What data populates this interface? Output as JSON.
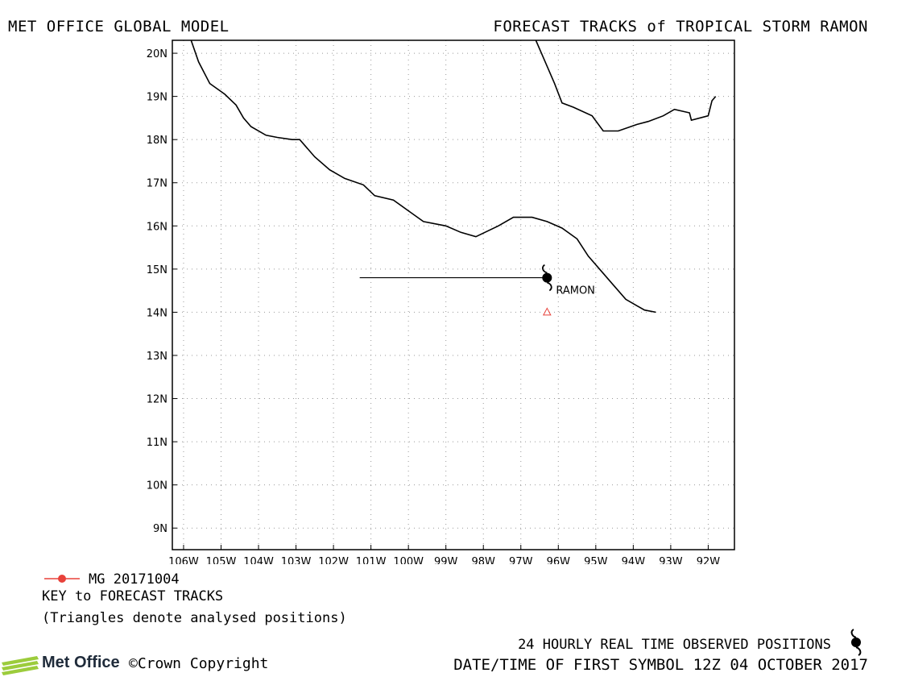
{
  "header": {
    "left": "MET OFFICE GLOBAL MODEL",
    "right": "FORECAST TRACKS of TROPICAL STORM RAMON"
  },
  "map": {
    "lat_labels": [
      "20N",
      "19N",
      "18N",
      "17N",
      "16N",
      "15N",
      "14N",
      "13N",
      "12N",
      "11N",
      "10N",
      "9N"
    ],
    "lat_values": [
      20,
      19,
      18,
      17,
      16,
      15,
      14,
      13,
      12,
      11,
      10,
      9
    ],
    "lon_labels": [
      "106W",
      "105W",
      "104W",
      "103W",
      "102W",
      "101W",
      "100W",
      "99W",
      "98W",
      "97W",
      "96W",
      "95W",
      "94W",
      "93W",
      "92W"
    ],
    "lon_values": [
      -106,
      -105,
      -104,
      -103,
      -102,
      -101,
      -100,
      -99,
      -98,
      -97,
      -96,
      -95,
      -94,
      -93,
      -92
    ],
    "extent": {
      "lon_min": -106.3,
      "lon_max": -91.3,
      "lat_min": 8.5,
      "lat_max": 20.3
    },
    "coastline_south": [
      [
        -105.8,
        20.3
      ],
      [
        -105.6,
        19.8
      ],
      [
        -105.3,
        19.3
      ],
      [
        -104.9,
        19.05
      ],
      [
        -104.6,
        18.8
      ],
      [
        -104.4,
        18.5
      ],
      [
        -104.2,
        18.3
      ],
      [
        -103.8,
        18.1
      ],
      [
        -103.5,
        18.05
      ],
      [
        -103.1,
        18.0
      ],
      [
        -102.9,
        18.0
      ],
      [
        -102.5,
        17.6
      ],
      [
        -102.1,
        17.3
      ],
      [
        -101.7,
        17.1
      ],
      [
        -101.2,
        16.95
      ],
      [
        -100.9,
        16.7
      ],
      [
        -100.4,
        16.6
      ],
      [
        -100.0,
        16.35
      ],
      [
        -99.6,
        16.1
      ],
      [
        -99.0,
        16.0
      ],
      [
        -98.6,
        15.85
      ],
      [
        -98.2,
        15.75
      ],
      [
        -97.6,
        16.0
      ],
      [
        -97.2,
        16.2
      ],
      [
        -96.7,
        16.2
      ],
      [
        -96.3,
        16.1
      ],
      [
        -95.9,
        15.95
      ],
      [
        -95.5,
        15.7
      ],
      [
        -95.2,
        15.3
      ],
      [
        -94.8,
        14.9
      ],
      [
        -94.5,
        14.6
      ],
      [
        -94.2,
        14.3
      ],
      [
        -93.9,
        14.15
      ],
      [
        -93.7,
        14.05
      ],
      [
        -93.4,
        14.0
      ]
    ],
    "coastline_north": [
      [
        -96.6,
        20.3
      ],
      [
        -96.4,
        19.9
      ],
      [
        -96.1,
        19.3
      ],
      [
        -95.9,
        18.85
      ],
      [
        -95.6,
        18.75
      ],
      [
        -95.1,
        18.55
      ],
      [
        -94.8,
        18.2
      ],
      [
        -94.4,
        18.2
      ],
      [
        -93.9,
        18.35
      ],
      [
        -93.6,
        18.42
      ],
      [
        -93.2,
        18.55
      ],
      [
        -92.9,
        18.7
      ],
      [
        -92.5,
        18.62
      ],
      [
        -92.45,
        18.45
      ],
      [
        -92.0,
        18.55
      ],
      [
        -91.9,
        18.9
      ],
      [
        -91.8,
        19.0
      ]
    ],
    "storm": {
      "name": "RAMON",
      "lat": 14.8,
      "lon": -96.3,
      "track_start_lon": -101.3
    },
    "analysed_triangle": {
      "lat": 14.0,
      "lon": -96.3
    }
  },
  "key": {
    "model_label": "MG 20171004",
    "title": "KEY to FORECAST TRACKS",
    "note": "(Triangles denote analysed positions)",
    "model_color": "#e8413a"
  },
  "footer": {
    "observed": "24 HOURLY REAL TIME OBSERVED POSITIONS",
    "datetime": "DATE/TIME OF FIRST SYMBOL 12Z 04 OCTOBER 2017",
    "logo": "Met Office",
    "copyright": "©Crown Copyright"
  },
  "colors": {
    "accent": "#9ccc3c",
    "triangle": "#e8413a"
  }
}
